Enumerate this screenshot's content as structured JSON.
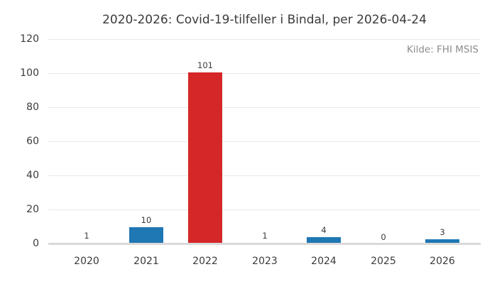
{
  "chart_data": {
    "type": "bar",
    "title": "2020-2026: Covid-19-tilfeller i Bindal, per 2026-04-24",
    "source_note": "Kilde: FHI MSIS",
    "categories": [
      "2020",
      "2021",
      "2022",
      "2023",
      "2024",
      "2025",
      "2026"
    ],
    "values": [
      1,
      10,
      101,
      1,
      4,
      0,
      3
    ],
    "bar_colors": [
      "#1f77b4",
      "#1f77b4",
      "#d62728",
      "#1f77b4",
      "#1f77b4",
      "#1f77b4",
      "#1f77b4"
    ],
    "xlabel": "",
    "ylabel": "",
    "ylim": [
      0,
      120
    ],
    "yticks": [
      0,
      20,
      40,
      60,
      80,
      100,
      120
    ],
    "grid": true,
    "legend": "none",
    "colors": {
      "bar_default": "#1f77b4",
      "bar_highlight": "#d62728",
      "gridline": "#e9e9e9",
      "zero_line": "#d9d9d9",
      "text": "#3a3a3a",
      "muted_text": "#8c8c8c",
      "background": "#ffffff"
    }
  }
}
